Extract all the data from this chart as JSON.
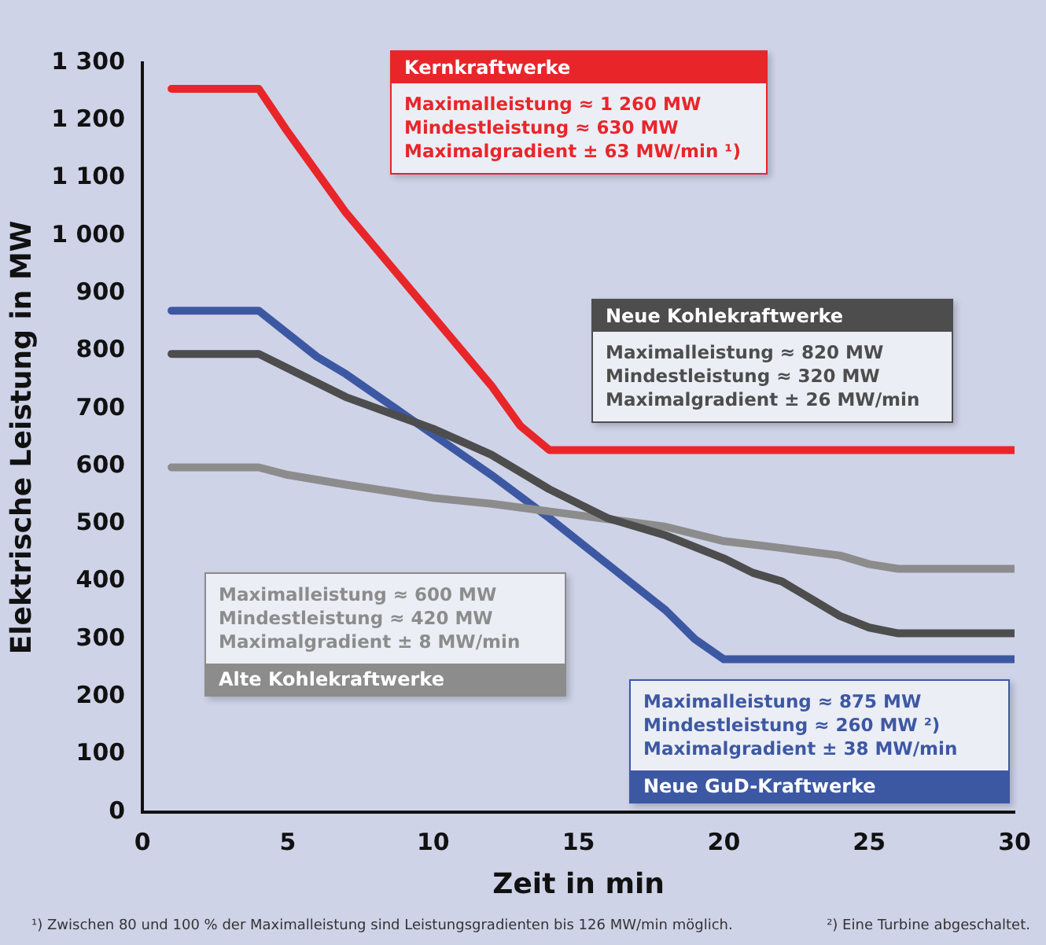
{
  "chart_data": {
    "type": "line",
    "xlabel": "Zeit in min",
    "ylabel": "Elektrische Leistung in MW",
    "xlim": [
      0,
      30
    ],
    "xticks": [
      0,
      5,
      10,
      15,
      20,
      25,
      30
    ],
    "ylim": [
      0,
      1300
    ],
    "yticks": [
      0,
      100,
      200,
      300,
      400,
      500,
      600,
      700,
      800,
      900,
      {
        "value": 1000,
        "label": "1 000"
      },
      {
        "value": 1100,
        "label": "1 100"
      },
      {
        "value": 1200,
        "label": "1 200"
      },
      {
        "value": 1300,
        "label": "1 300"
      }
    ],
    "grid": false,
    "legend": false,
    "marker": "none",
    "line_style": "solid",
    "series": [
      {
        "name": "Kernkraftwerke",
        "color": "#e8262a",
        "x": [
          1,
          4,
          5,
          7,
          9,
          10,
          12,
          13,
          14,
          30
        ],
        "values": [
          1255,
          1255,
          1180,
          1040,
          920,
          860,
          740,
          670,
          628,
          628
        ]
      },
      {
        "name": "Neue Kohlekraftwerke",
        "color": "#4d4d4d",
        "x": [
          1,
          4,
          5,
          7,
          10,
          12,
          14,
          16,
          18,
          20,
          21,
          22,
          23,
          24,
          25,
          26,
          30
        ],
        "values": [
          795,
          795,
          770,
          720,
          665,
          620,
          560,
          510,
          480,
          440,
          415,
          400,
          370,
          340,
          320,
          310,
          310
        ]
      },
      {
        "name": "Alte Kohlekraftwerke",
        "color": "#8c8c8c",
        "x": [
          1,
          4,
          5,
          7,
          10,
          12,
          15,
          18,
          20,
          22,
          24,
          25,
          26,
          30
        ],
        "values": [
          598,
          598,
          585,
          568,
          545,
          535,
          515,
          495,
          470,
          458,
          445,
          430,
          422,
          422
        ]
      },
      {
        "name": "Neue GuD-Kraftwerke",
        "color": "#3d58a3",
        "x": [
          1,
          4,
          5,
          6,
          7,
          9,
          10,
          12,
          14,
          16,
          18,
          19,
          20,
          30
        ],
        "values": [
          870,
          870,
          830,
          790,
          760,
          690,
          655,
          585,
          510,
          430,
          350,
          300,
          265,
          265
        ]
      }
    ],
    "annotations": [
      "Maximalleistung ≈ 1 260 MW",
      "Mindestleistung ≈ 630 MW",
      "Maximalgradient ± 63 MW/min ¹)",
      "Maximalleistung ≈ 820 MW",
      "Mindestleistung ≈ 320 MW",
      "Maximalgradient ± 26 MW/min",
      "Maximalleistung ≈ 600 MW",
      "Mindestleistung ≈ 420 MW",
      "Maximalgradient ± 8 MW/min",
      "Maximalleistung ≈ 875 MW",
      "Mindestleistung ≈ 260 MW ²)",
      "Maximalgradient ± 38 MW/min",
      "¹) Zwischen 80 und 100 % der Maximalleistung sind Leistungsgradienten bis 126 MW/min möglich.",
      "²) Eine Turbine abgeschaltet."
    ]
  }
}
